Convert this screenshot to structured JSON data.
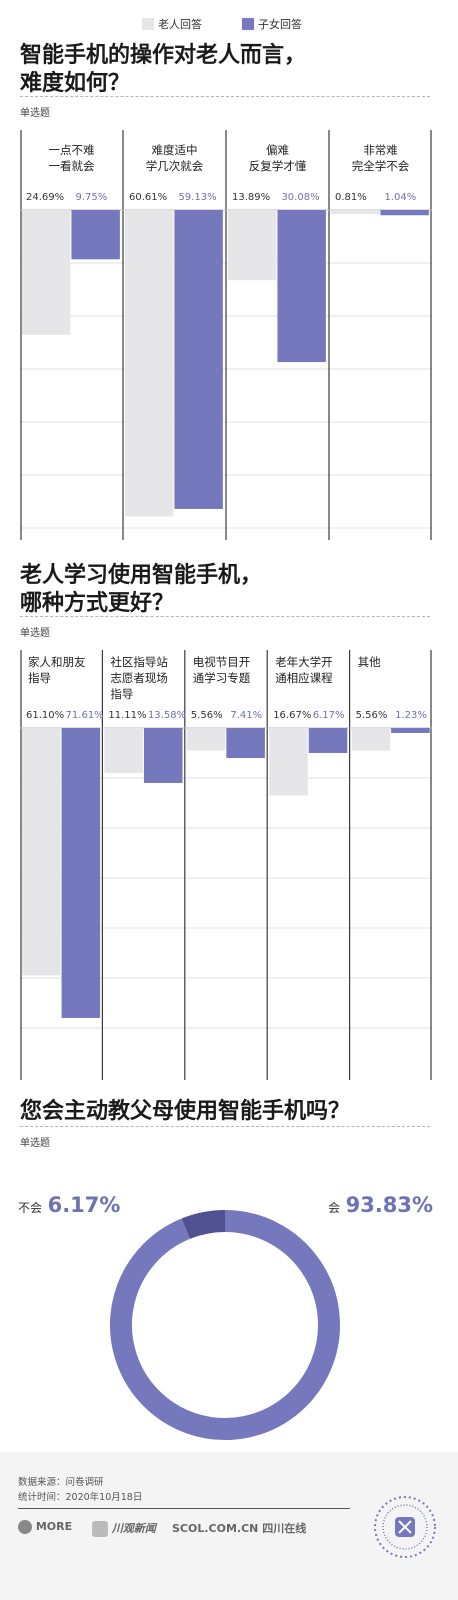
{
  "legend": [
    {
      "label": "老人回答",
      "color": "#e6e6e8"
    },
    {
      "label": "子女回答",
      "color": "#7678bd"
    }
  ],
  "sections": {
    "s1": {
      "title_l1": "智能手机的操作对老人而言，",
      "title_l2": "难度如何？",
      "subtitle": "单选题"
    },
    "s2": {
      "title_l1": "老人学习使用智能手机，",
      "title_l2": "哪种方式更好？",
      "subtitle": "单选题"
    },
    "s3": {
      "title_l1": "您会主动教父母使用智能手机吗？",
      "subtitle": "单选题"
    }
  },
  "chart_data": [
    {
      "type": "bar",
      "title": "智能手机的操作对老人而言，难度如何？",
      "categories": [
        [
          "一点不难",
          "一看就会"
        ],
        [
          "难度适中",
          "学几次就会"
        ],
        [
          "偏难",
          "反复学才懂"
        ],
        [
          "非常难",
          "完全学不会"
        ]
      ],
      "series": [
        {
          "name": "老人回答",
          "values": [
            24.69,
            60.61,
            13.89,
            0.81
          ],
          "labels": [
            "24.69%",
            "60.61%",
            "13.89%",
            "0.81%"
          ],
          "color": "#e6e6e8"
        },
        {
          "name": "子女回答",
          "values": [
            9.75,
            59.13,
            30.08,
            1.04
          ],
          "labels": [
            "9.75%",
            "59.13%",
            "30.08%",
            "1.04%"
          ],
          "color": "#7678bd"
        }
      ],
      "ylim": [
        0,
        62.5
      ],
      "grid": true
    },
    {
      "type": "bar",
      "title": "老人学习使用智能手机，哪种方式更好？",
      "categories": [
        [
          "家人和朋友",
          "指导"
        ],
        [
          "社区指导站",
          "志愿者现场",
          "指导"
        ],
        [
          "电视节目开",
          "通学习专题"
        ],
        [
          "老年大学开",
          "通相应课程"
        ],
        [
          "其他"
        ]
      ],
      "series": [
        {
          "name": "老人回答",
          "values": [
            61.1,
            11.11,
            5.56,
            16.67,
            5.56
          ],
          "labels": [
            "61.10%",
            "11.11%",
            "5.56%",
            "16.67%",
            "5.56%"
          ],
          "color": "#e6e6e8"
        },
        {
          "name": "子女回答",
          "values": [
            71.61,
            13.58,
            7.41,
            6.17,
            1.23
          ],
          "labels": [
            "71.61%",
            "13.58%",
            "7.41%",
            "6.17%",
            "1.23%"
          ],
          "color": "#7678bd"
        }
      ],
      "ylim": [
        0,
        82
      ],
      "grid": true
    },
    {
      "type": "pie",
      "title": "您会主动教父母使用智能手机吗？",
      "categories": [
        "不会",
        "会"
      ],
      "values": [
        6.17,
        93.83
      ],
      "labels": [
        "6.17%",
        "93.83%"
      ],
      "colors": [
        "#4f5191",
        "#7678bd"
      ]
    }
  ],
  "footer": {
    "source": "数据来源：问卷调研",
    "date": "统计时间：2020年10月18日",
    "logos": [
      "MORE",
      "川观新闻",
      "SCOL.COM.CN 四川在线"
    ]
  }
}
